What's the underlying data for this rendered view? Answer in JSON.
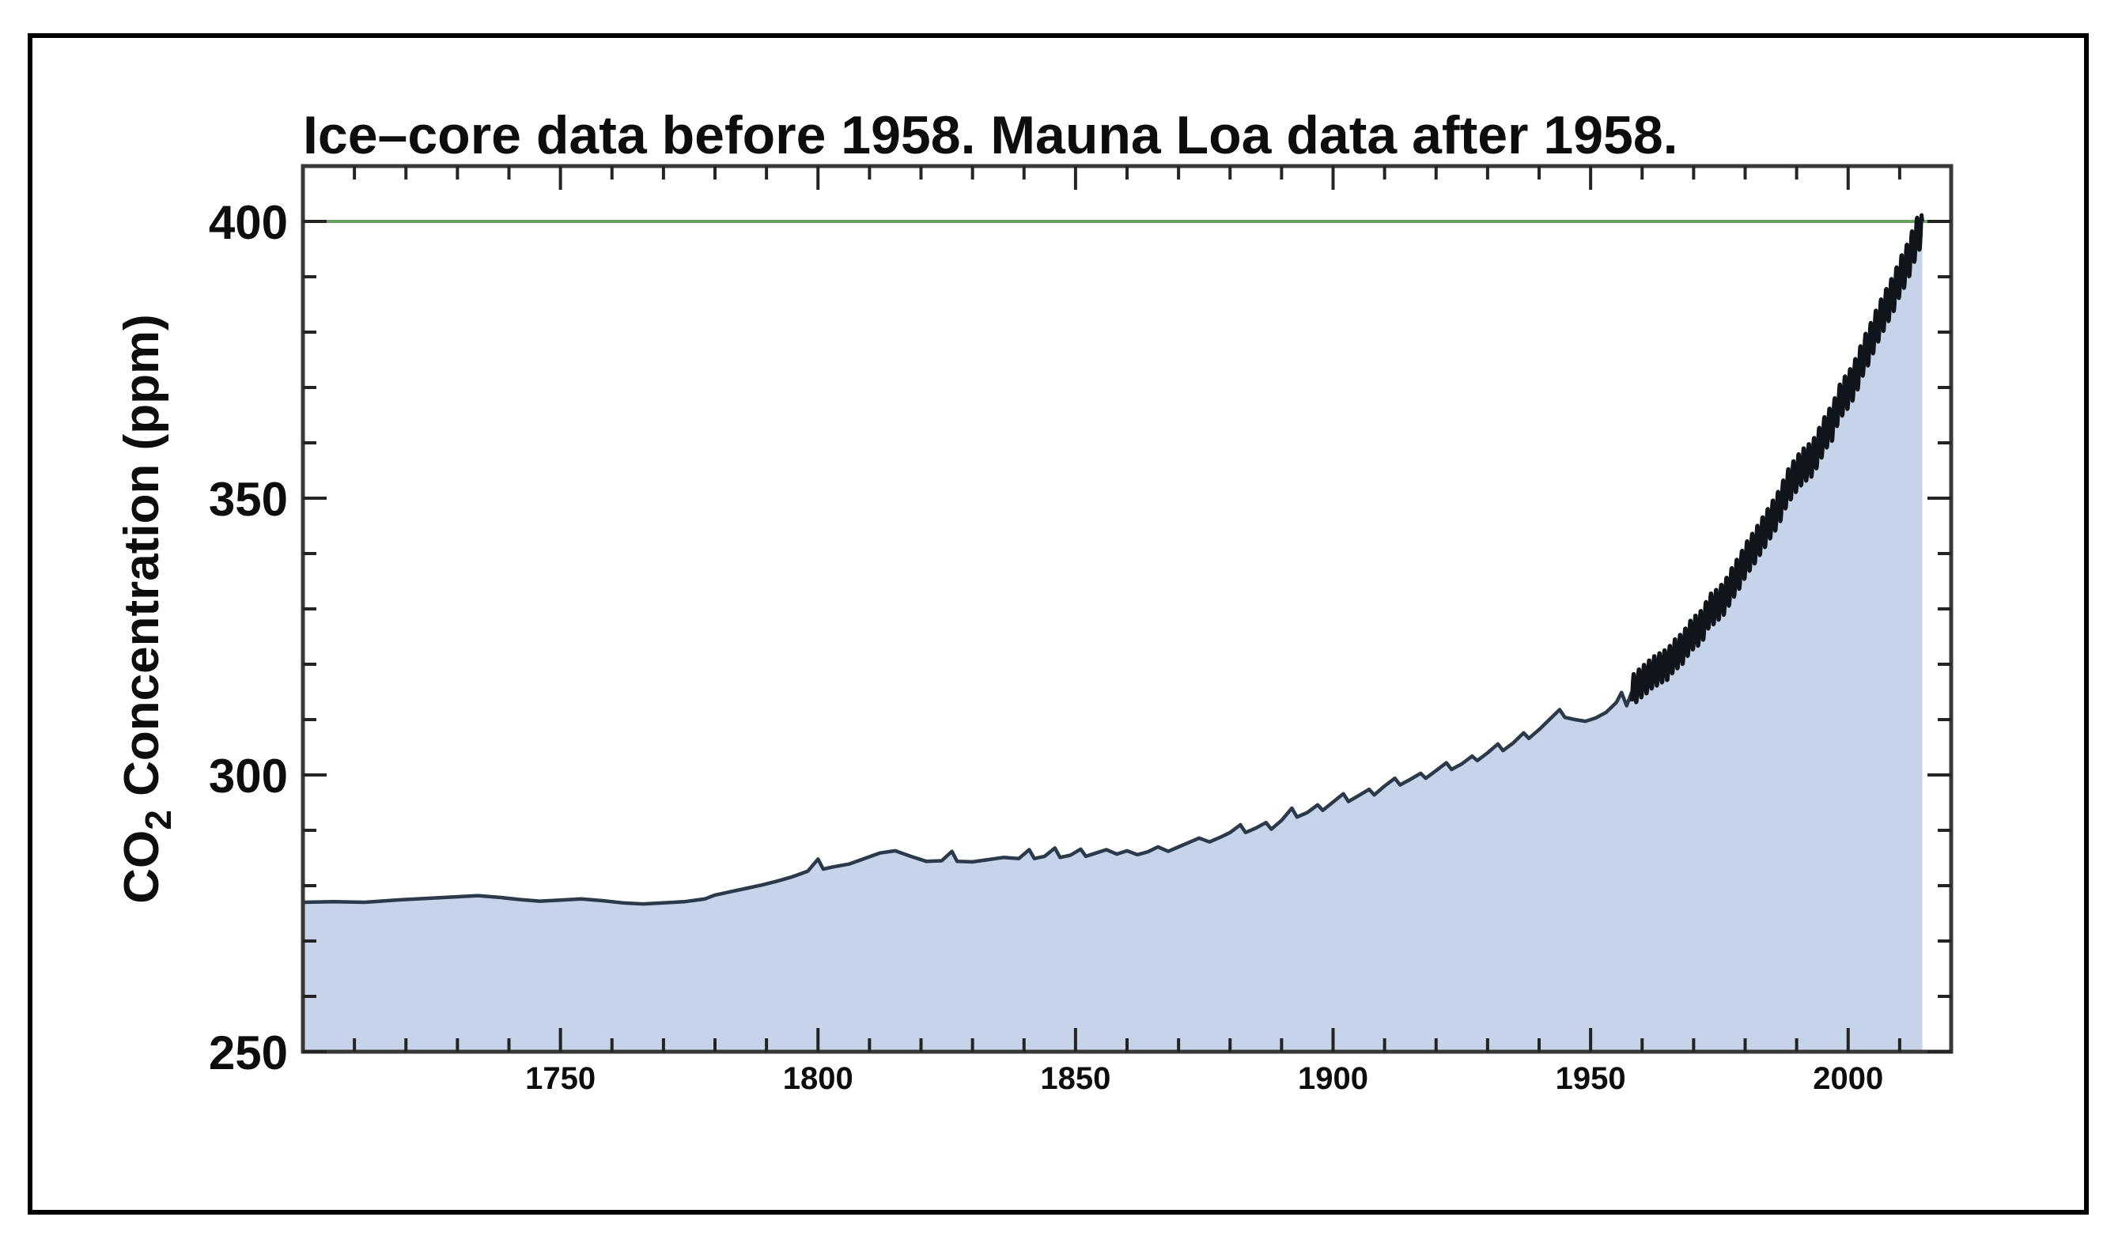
{
  "chart_data": {
    "type": "area",
    "title": "Ice–core data before 1958. Mauna Loa data after 1958.",
    "xlabel": "",
    "ylabel": "CO2 Concentration (ppm)",
    "ylabel_parts": {
      "main": "CO",
      "sub": "2",
      "rest": " Concentration (ppm)"
    },
    "xlim": [
      1700,
      2020
    ],
    "ylim": [
      250,
      410
    ],
    "x_axis": {
      "major_ticks": [
        1750,
        1800,
        1850,
        1900,
        1950,
        2000
      ],
      "major_tick_labels": [
        "1750",
        "1800",
        "1850",
        "1900",
        "1950",
        "2000"
      ],
      "minor_step": 10,
      "minor_first": 1710,
      "minor_last": 2010
    },
    "y_axis": {
      "major_ticks": [
        250,
        300,
        350,
        400
      ],
      "major_tick_labels": [
        "250",
        "300",
        "350",
        "400"
      ],
      "minor_step": 10,
      "minor_first": 260,
      "minor_last": 390
    },
    "reference_line": {
      "value": 400,
      "orientation": "horizontal"
    },
    "grid": false,
    "legend": false,
    "series": [
      {
        "name": "Ice-core data (before 1958)",
        "points": [
          [
            1700,
            277.0
          ],
          [
            1706,
            277.1
          ],
          [
            1712,
            277.0
          ],
          [
            1718,
            277.4
          ],
          [
            1724,
            277.7
          ],
          [
            1730,
            278.0
          ],
          [
            1734,
            278.2
          ],
          [
            1738,
            277.9
          ],
          [
            1742,
            277.5
          ],
          [
            1746,
            277.2
          ],
          [
            1750,
            277.4
          ],
          [
            1754,
            277.6
          ],
          [
            1758,
            277.3
          ],
          [
            1762,
            276.9
          ],
          [
            1766,
            276.7
          ],
          [
            1770,
            276.9
          ],
          [
            1774,
            277.1
          ],
          [
            1778,
            277.6
          ],
          [
            1780,
            278.3
          ],
          [
            1783,
            278.9
          ],
          [
            1786,
            279.5
          ],
          [
            1789,
            280.1
          ],
          [
            1792,
            280.8
          ],
          [
            1795,
            281.6
          ],
          [
            1798,
            282.6
          ],
          [
            1800,
            284.8
          ],
          [
            1801,
            283.0
          ],
          [
            1803,
            283.4
          ],
          [
            1806,
            283.9
          ],
          [
            1809,
            284.9
          ],
          [
            1812,
            285.9
          ],
          [
            1815,
            286.3
          ],
          [
            1818,
            285.3
          ],
          [
            1821,
            284.4
          ],
          [
            1824,
            284.5
          ],
          [
            1826,
            286.2
          ],
          [
            1827,
            284.4
          ],
          [
            1830,
            284.3
          ],
          [
            1833,
            284.7
          ],
          [
            1836,
            285.1
          ],
          [
            1839,
            284.9
          ],
          [
            1841,
            286.5
          ],
          [
            1842,
            284.9
          ],
          [
            1844,
            285.3
          ],
          [
            1846,
            286.8
          ],
          [
            1847,
            285.1
          ],
          [
            1849,
            285.5
          ],
          [
            1851,
            286.6
          ],
          [
            1852,
            285.3
          ],
          [
            1854,
            285.9
          ],
          [
            1856,
            286.5
          ],
          [
            1858,
            285.7
          ],
          [
            1860,
            286.3
          ],
          [
            1862,
            285.6
          ],
          [
            1864,
            286.1
          ],
          [
            1866,
            287.0
          ],
          [
            1868,
            286.2
          ],
          [
            1870,
            287.0
          ],
          [
            1872,
            287.8
          ],
          [
            1874,
            288.6
          ],
          [
            1876,
            287.9
          ],
          [
            1878,
            288.7
          ],
          [
            1880,
            289.6
          ],
          [
            1882,
            291.0
          ],
          [
            1883,
            289.6
          ],
          [
            1885,
            290.4
          ],
          [
            1887,
            291.4
          ],
          [
            1888,
            290.2
          ],
          [
            1890,
            291.8
          ],
          [
            1892,
            294.0
          ],
          [
            1893,
            292.4
          ],
          [
            1895,
            293.2
          ],
          [
            1897,
            294.6
          ],
          [
            1898,
            293.6
          ],
          [
            1900,
            295.1
          ],
          [
            1902,
            296.6
          ],
          [
            1903,
            295.2
          ],
          [
            1905,
            296.3
          ],
          [
            1907,
            297.4
          ],
          [
            1908,
            296.4
          ],
          [
            1910,
            298.0
          ],
          [
            1912,
            299.4
          ],
          [
            1913,
            298.2
          ],
          [
            1915,
            299.2
          ],
          [
            1917,
            300.3
          ],
          [
            1918,
            299.4
          ],
          [
            1920,
            300.8
          ],
          [
            1922,
            302.2
          ],
          [
            1923,
            301.0
          ],
          [
            1925,
            302.0
          ],
          [
            1927,
            303.4
          ],
          [
            1928,
            302.6
          ],
          [
            1930,
            304.0
          ],
          [
            1932,
            305.6
          ],
          [
            1933,
            304.4
          ],
          [
            1935,
            305.8
          ],
          [
            1937,
            307.6
          ],
          [
            1938,
            306.6
          ],
          [
            1940,
            308.2
          ],
          [
            1942,
            310.0
          ],
          [
            1944,
            311.8
          ],
          [
            1945,
            310.4
          ],
          [
            1947,
            310.0
          ],
          [
            1949,
            309.7
          ],
          [
            1951,
            310.3
          ],
          [
            1953,
            311.3
          ],
          [
            1955,
            313.1
          ],
          [
            1956,
            314.9
          ],
          [
            1957,
            312.5
          ],
          [
            1958,
            315.0
          ]
        ]
      },
      {
        "name": "Mauna Loa data (after 1958)",
        "annual_mean_points": [
          [
            1958,
            315.2
          ],
          [
            1959,
            316.0
          ],
          [
            1960,
            316.9
          ],
          [
            1961,
            317.6
          ],
          [
            1962,
            318.5
          ],
          [
            1963,
            319.0
          ],
          [
            1964,
            319.6
          ],
          [
            1965,
            320.0
          ],
          [
            1966,
            321.4
          ],
          [
            1967,
            322.2
          ],
          [
            1968,
            323.0
          ],
          [
            1969,
            324.6
          ],
          [
            1970,
            325.7
          ],
          [
            1971,
            326.3
          ],
          [
            1972,
            327.5
          ],
          [
            1973,
            329.7
          ],
          [
            1974,
            330.2
          ],
          [
            1975,
            331.1
          ],
          [
            1976,
            332.0
          ],
          [
            1977,
            333.8
          ],
          [
            1978,
            335.4
          ],
          [
            1979,
            336.8
          ],
          [
            1980,
            338.7
          ],
          [
            1981,
            340.1
          ],
          [
            1982,
            341.4
          ],
          [
            1983,
            343.0
          ],
          [
            1984,
            344.4
          ],
          [
            1985,
            346.0
          ],
          [
            1986,
            347.4
          ],
          [
            1987,
            349.2
          ],
          [
            1988,
            351.6
          ],
          [
            1989,
            353.1
          ],
          [
            1990,
            354.4
          ],
          [
            1991,
            355.6
          ],
          [
            1992,
            356.4
          ],
          [
            1993,
            357.1
          ],
          [
            1994,
            358.8
          ],
          [
            1995,
            360.8
          ],
          [
            1996,
            362.6
          ],
          [
            1997,
            363.7
          ],
          [
            1998,
            366.7
          ],
          [
            1999,
            368.4
          ],
          [
            2000,
            369.5
          ],
          [
            2001,
            371.1
          ],
          [
            2002,
            373.2
          ],
          [
            2003,
            375.8
          ],
          [
            2004,
            377.5
          ],
          [
            2005,
            379.8
          ],
          [
            2006,
            381.9
          ],
          [
            2007,
            383.8
          ],
          [
            2008,
            385.6
          ],
          [
            2009,
            387.4
          ],
          [
            2010,
            389.9
          ],
          [
            2011,
            391.6
          ],
          [
            2012,
            393.8
          ],
          [
            2013,
            396.5
          ],
          [
            2014,
            398.6
          ]
        ],
        "seasonal_amplitude_ppm": 2.8,
        "seasonal_amplitude_growth_per_year": 0.012,
        "seasonal_peak_phase": 0.37,
        "end_year": 2014.4,
        "end_value": 400.0
      }
    ],
    "colors": {
      "area_fill": "#c7d3e8",
      "ice_core_line": "#2b3a4a",
      "mauna_loa_line": "#10151b",
      "reference_green": "#67a062",
      "frame": "#383838",
      "tick": "#242424",
      "text": "#0d0d0d",
      "outer_border": "#000000",
      "background": "#ffffff"
    }
  }
}
